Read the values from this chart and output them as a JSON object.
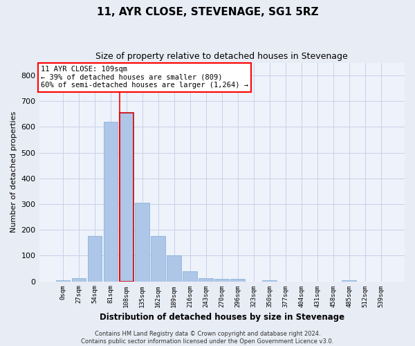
{
  "title": "11, AYR CLOSE, STEVENAGE, SG1 5RZ",
  "subtitle": "Size of property relative to detached houses in Stevenage",
  "xlabel": "Distribution of detached houses by size in Stevenage",
  "ylabel": "Number of detached properties",
  "bin_labels": [
    "0sqm",
    "27sqm",
    "54sqm",
    "81sqm",
    "108sqm",
    "135sqm",
    "162sqm",
    "189sqm",
    "216sqm",
    "243sqm",
    "270sqm",
    "296sqm",
    "323sqm",
    "350sqm",
    "377sqm",
    "404sqm",
    "431sqm",
    "458sqm",
    "485sqm",
    "512sqm",
    "539sqm"
  ],
  "bar_values": [
    5,
    13,
    175,
    620,
    655,
    305,
    175,
    100,
    38,
    13,
    10,
    10,
    0,
    5,
    0,
    0,
    0,
    0,
    5,
    0,
    0
  ],
  "bar_color": "#aec6e8",
  "bar_edge_color": "#7bafd4",
  "highlight_bar_index": 4,
  "highlight_bar_edge_color": "#cc0000",
  "ylim": [
    0,
    850
  ],
  "yticks": [
    0,
    100,
    200,
    300,
    400,
    500,
    600,
    700,
    800
  ],
  "annotation_line1": "11 AYR CLOSE: 109sqm",
  "annotation_line2": "← 39% of detached houses are smaller (809)",
  "annotation_line3": "60% of semi-detached houses are larger (1,264) →",
  "footer_line1": "Contains HM Land Registry data © Crown copyright and database right 2024.",
  "footer_line2": "Contains public sector information licensed under the Open Government Licence v3.0.",
  "bg_color": "#e8ecf5",
  "plot_bg_color": "#eef2fb",
  "grid_color": "#c8d0e8",
  "title_fontsize": 11,
  "subtitle_fontsize": 9
}
